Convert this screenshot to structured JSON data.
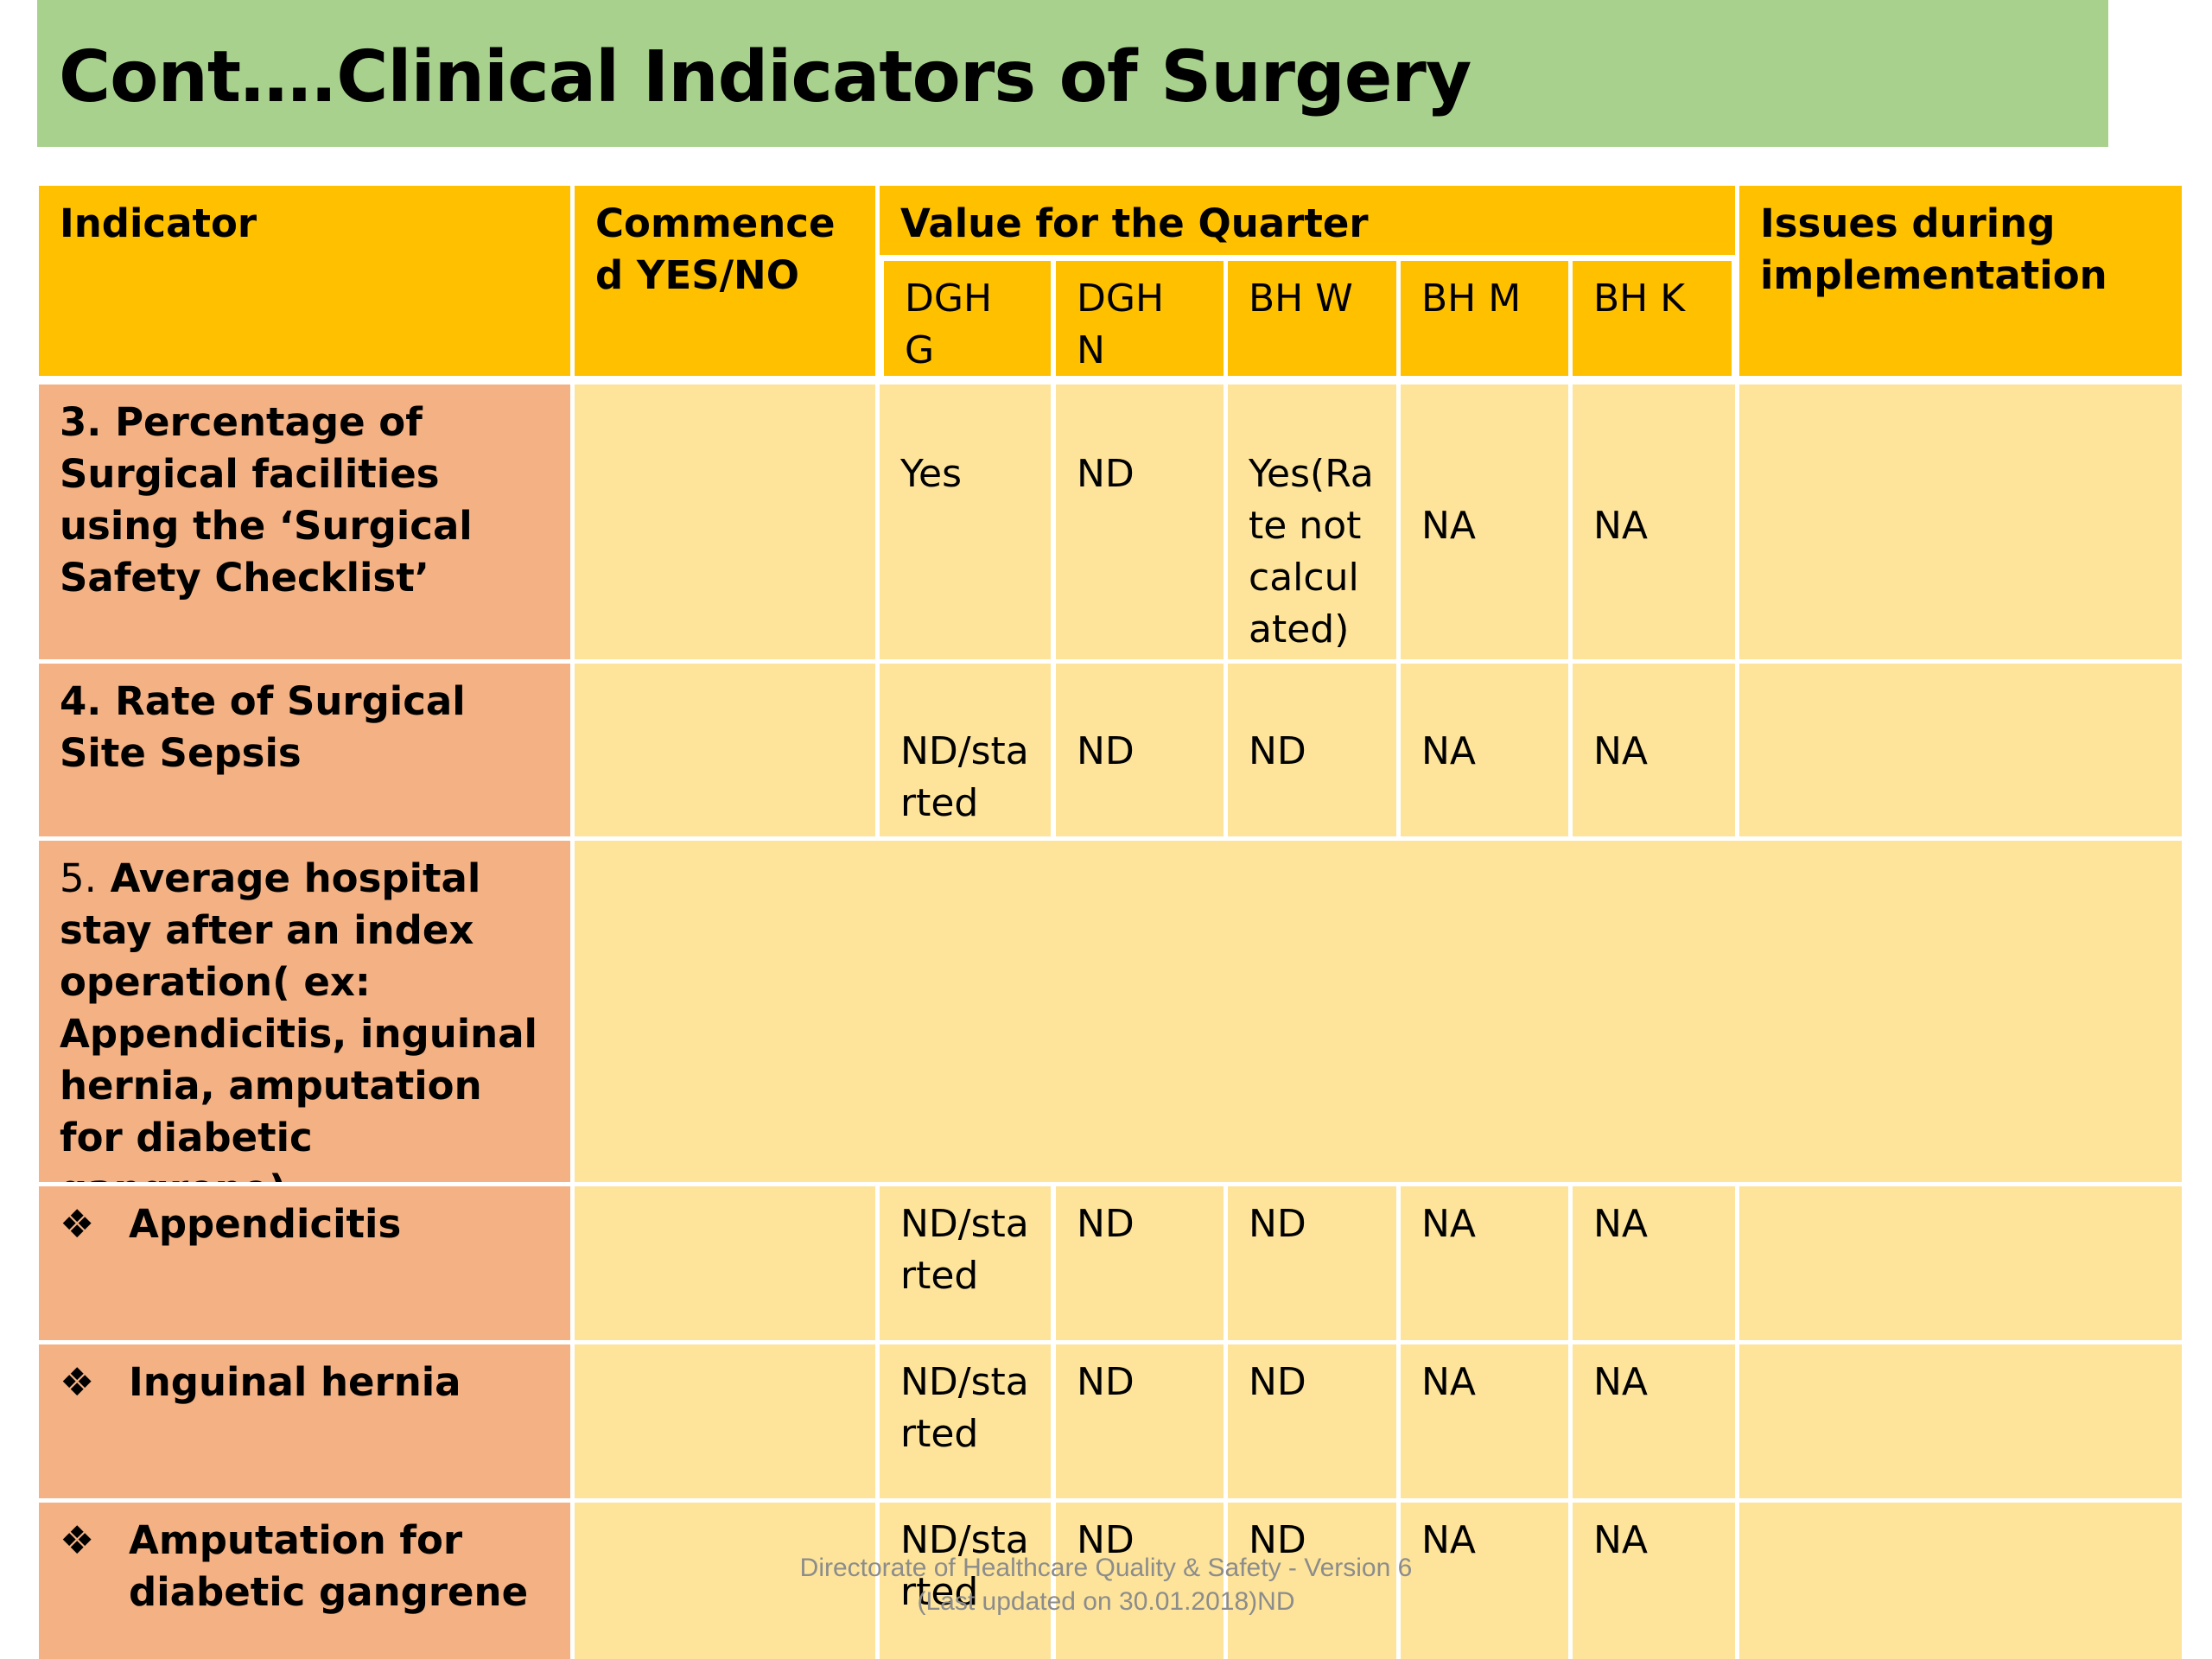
{
  "title": "Cont….Clinical Indicators of Surgery",
  "header": {
    "indicator": "Indicator",
    "commenced": "Commenced YES/NO",
    "value_quarter": "Value for the Quarter",
    "issues": "Issues during implementation",
    "sub": [
      "DGH G",
      "DGH N",
      "BH W",
      "BH M",
      "BH K"
    ]
  },
  "rows": [
    {
      "num": "3.",
      "label": "Percentage of Surgical facilities using the ‘Surgical Safety Checklist’",
      "values": [
        "Yes",
        "ND",
        "Yes(Rate not calculated)",
        "NA",
        "NA"
      ]
    },
    {
      "num": "4.",
      "label": "Rate of Surgical Site Sepsis",
      "values": [
        "ND/started",
        "ND",
        "ND",
        "NA",
        "NA"
      ]
    },
    {
      "num": "5.",
      "label": "Average hospital stay after an index operation( ex: Appendicitis, inguinal hernia, amputation for diabetic gangrene)"
    },
    {
      "bullet": "❖",
      "label": "Appendicitis",
      "values": [
        "ND/started",
        "ND",
        "ND",
        "NA",
        "NA"
      ]
    },
    {
      "bullet": "❖",
      "label": "Inguinal hernia",
      "values": [
        "ND/started",
        "ND",
        "ND",
        "NA",
        "NA"
      ]
    },
    {
      "bullet": "❖",
      "label": "Amputation for diabetic gangrene",
      "values": [
        "ND/started",
        "ND",
        "ND",
        "NA",
        "NA"
      ]
    }
  ],
  "footer": {
    "line1": "Directorate of Healthcare Quality & Safety - Version 6",
    "line2": "(Last updated on 30.01.2018)ND"
  }
}
